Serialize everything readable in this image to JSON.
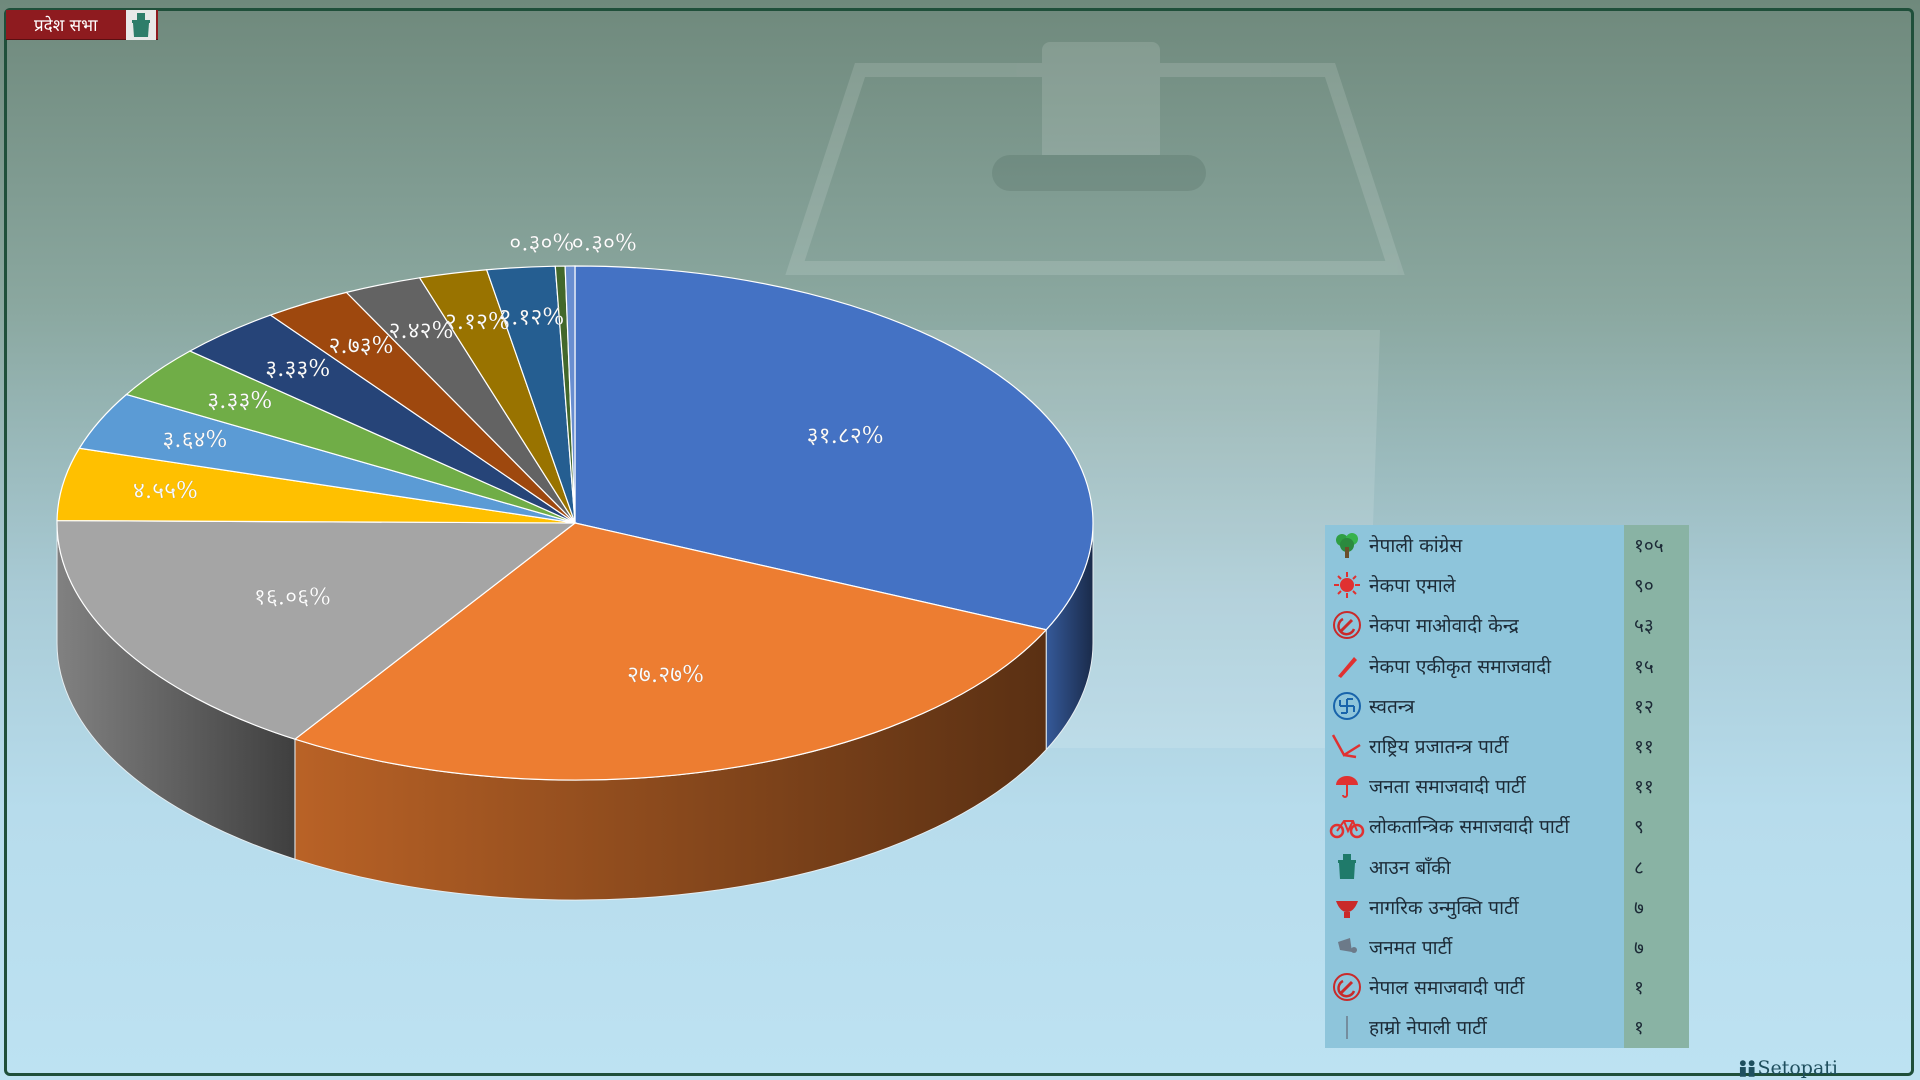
{
  "header": {
    "title": "प्रदेश सभा",
    "icon": "ballot-box-icon"
  },
  "logo": {
    "text": "Setopati"
  },
  "colors": {
    "header_bg": "#8e1b1f",
    "legend_bg": "#8ec5db",
    "legend_count_bg": "#89b3a4",
    "series": [
      "#4472c4",
      "#ed7d31",
      "#a5a5a5",
      "#ffc000",
      "#5b9bd5",
      "#70ad47",
      "#264478",
      "#9e480e",
      "#636363",
      "#997300",
      "#255e91",
      "#43682b",
      "#698ed0"
    ]
  },
  "chart_data": {
    "type": "pie",
    "title": "",
    "categories": [
      "नेपाली कांग्रेस",
      "नेकपा एमाले",
      "नेकपा माओवादी केन्द्र",
      "नेकपा एकीकृत समाजवादी",
      "स्वतन्त्र",
      "राष्ट्रिय प्रजातन्त्र पार्टी",
      "जनता समाजवादी पार्टी",
      "लोकतान्त्रिक समाजवादी पार्टी",
      "आउन बाँकी",
      "नागरिक उन्मुक्ति पार्टी",
      "जनमत पार्टी",
      "नेपाल समाजवादी पार्टी",
      "हाम्रो नेपाली पार्टी"
    ],
    "values": [
      105,
      90,
      53,
      15,
      12,
      11,
      11,
      9,
      8,
      7,
      7,
      1,
      1
    ],
    "labels": [
      "३१.८२%",
      "२७.२७%",
      "१६.०६%",
      "४.५५%",
      "३.६४%",
      "३.३३%",
      "३.३३%",
      "२.७३%",
      "२.४२%",
      "२.१२%",
      "२.१२%",
      "०.३०%",
      "०.३०%"
    ],
    "legend_position": "right"
  },
  "legend": {
    "items": [
      {
        "name": "नेपाली कांग्रेस",
        "count": "१०५",
        "icon": "tree-icon"
      },
      {
        "name": "नेकपा एमाले",
        "count": "९०",
        "icon": "sun-icon"
      },
      {
        "name": "नेकपा माओवादी केन्द्र",
        "count": "५३",
        "icon": "hammer-sickle-icon"
      },
      {
        "name": "नेकपा एकीकृत समाजवादी",
        "count": "१५",
        "icon": "pen-icon"
      },
      {
        "name": "स्वतन्त्र",
        "count": "१२",
        "icon": "swastika-icon"
      },
      {
        "name": "राष्ट्रिय प्रजातन्त्र पार्टी",
        "count": "११",
        "icon": "plough-icon"
      },
      {
        "name": "जनता समाजवादी पार्टी",
        "count": "११",
        "icon": "umbrella-icon"
      },
      {
        "name": "लोकतान्त्रिक समाजवादी पार्टी",
        "count": "९",
        "icon": "bicycle-icon"
      },
      {
        "name": "आउन बाँकी",
        "count": "८",
        "icon": "ballot-box-icon"
      },
      {
        "name": "नागरिक उन्मुक्ति पार्टी",
        "count": "७",
        "icon": "bowl-icon"
      },
      {
        "name": "जनमत पार्टी",
        "count": "७",
        "icon": "loudspeaker-icon"
      },
      {
        "name": "नेपाल समाजवादी पार्टी",
        "count": "१",
        "icon": "hammer-sickle-icon"
      },
      {
        "name": "हाम्रो नेपाली पार्टी",
        "count": "१",
        "icon": "stick-icon"
      }
    ]
  }
}
